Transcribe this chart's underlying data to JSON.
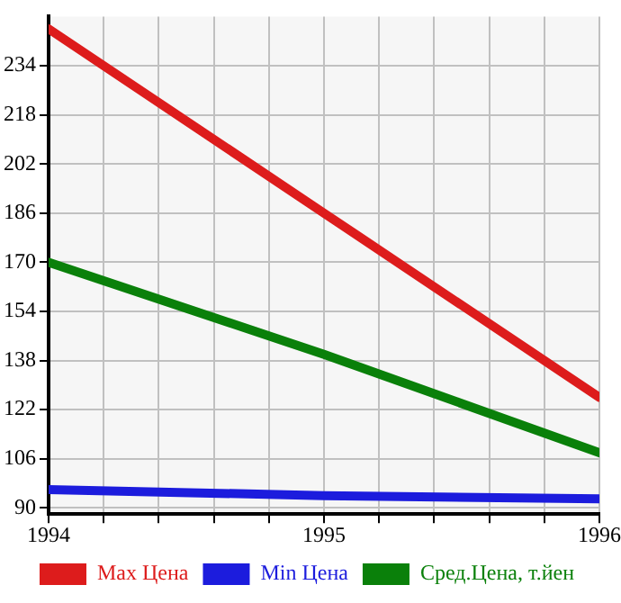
{
  "chart_data": {
    "type": "line",
    "x": [
      1994,
      1995,
      1996
    ],
    "series": [
      {
        "name": "Max Цена",
        "color": "#dd1c1c",
        "values": [
          246,
          186,
          126
        ]
      },
      {
        "name": "Min Цена",
        "color": "#1c1cdd",
        "values": [
          96,
          94,
          93
        ]
      },
      {
        "name": "Сред.Цена, т.йен",
        "color": "#0a800a",
        "values": [
          170,
          140,
          108
        ]
      }
    ],
    "xlim": [
      1994,
      1996
    ],
    "xticks": [
      1994,
      {
        "value": 1994.2,
        "label": null
      },
      {
        "value": 1994.4,
        "label": null
      },
      {
        "value": 1994.6,
        "label": null
      },
      {
        "value": 1994.8,
        "label": null
      },
      1995,
      {
        "value": 1995.2,
        "label": null
      },
      {
        "value": 1995.4,
        "label": null
      },
      {
        "value": 1995.6,
        "label": null
      },
      {
        "value": 1995.8,
        "label": null
      },
      1996
    ],
    "ylim": [
      88,
      250
    ],
    "yticks": [
      90,
      106,
      122,
      138,
      154,
      170,
      186,
      202,
      218,
      234
    ],
    "grid": true,
    "legend": "bottom",
    "marker": "none",
    "line_style": "solid"
  }
}
